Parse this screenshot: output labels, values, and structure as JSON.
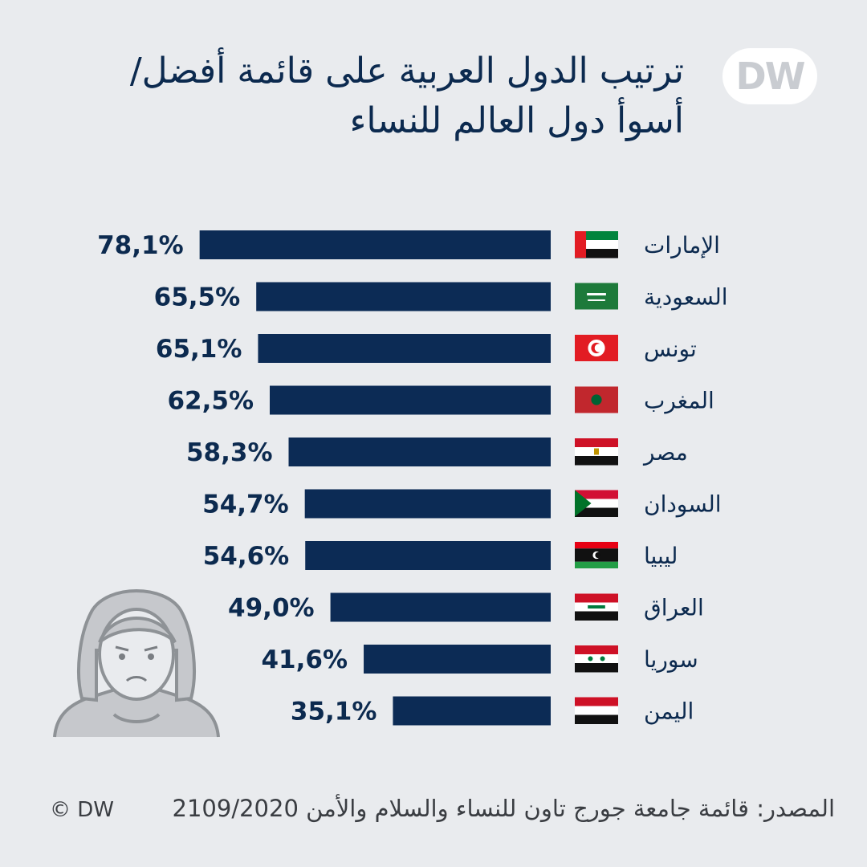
{
  "title": "ترتيب الدول العربية على قائمة أفضل/ أسوأ دول العالم للنساء",
  "logo": "DW",
  "source": "المصدر: قائمة جامعة جورج تاون للنساء والسلام والأمن 2109/2020",
  "copyright": "© DW",
  "colors": {
    "bar": "#0c2b55",
    "background": "#e9ebee",
    "text": "#0c2a4f"
  },
  "chart_data": {
    "type": "bar",
    "orientation": "horizontal",
    "title": "ترتيب الدول العربية على قائمة أفضل/ أسوأ دول العالم للنساء",
    "xlim": [
      0,
      100
    ],
    "grid": false,
    "legend": "none",
    "categories": [
      "الإمارات",
      "السعودية",
      "تونس",
      "المغرب",
      "مصر",
      "السودان",
      "ليبيا",
      "العراق",
      "سوريا",
      "اليمن"
    ],
    "values": [
      78.1,
      65.5,
      65.1,
      62.5,
      58.3,
      54.7,
      54.6,
      49.0,
      41.6,
      35.1
    ],
    "value_labels": [
      "78,1%",
      "65,5%",
      "65,1%",
      "62,5%",
      "58,3%",
      "54,7%",
      "54,6%",
      "49,0%",
      "41,6%",
      "35,1%"
    ],
    "flags": [
      "uae-flag-icon",
      "saudi-flag-icon",
      "tunisia-flag-icon",
      "morocco-flag-icon",
      "egypt-flag-icon",
      "sudan-flag-icon",
      "libya-flag-icon",
      "iraq-flag-icon",
      "syria-flag-icon",
      "yemen-flag-icon"
    ]
  }
}
